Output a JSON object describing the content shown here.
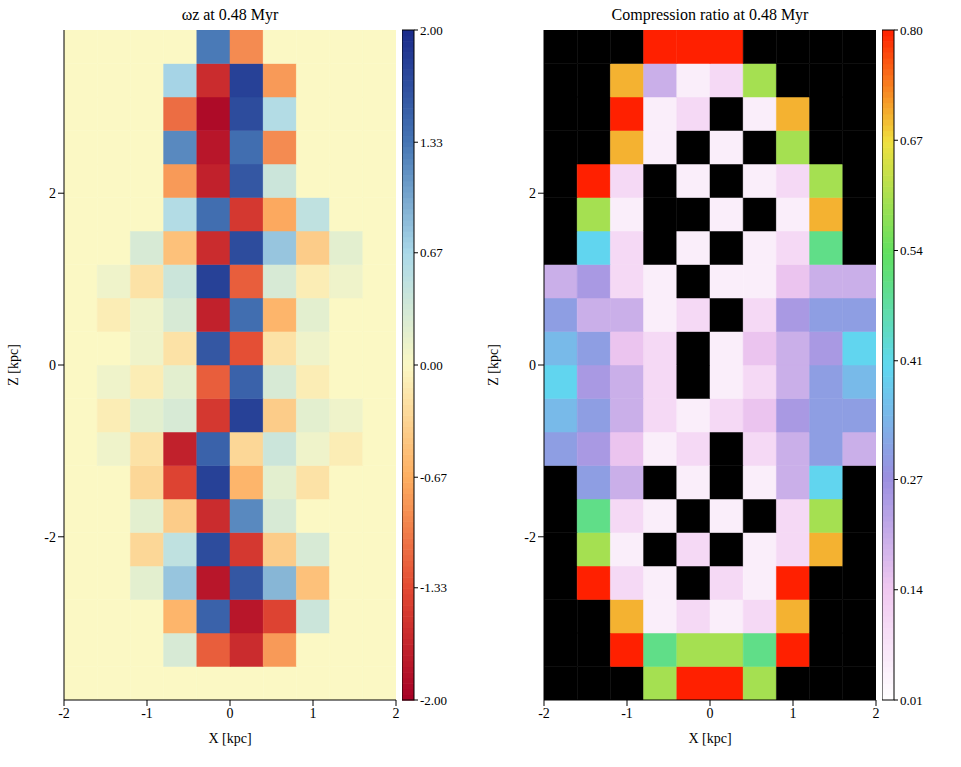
{
  "chart_data": [
    {
      "type": "heatmap",
      "title": "ωz at 0.48 Myr",
      "xlabel": "X [kpc]",
      "ylabel": "Z [kpc]",
      "xlim": [
        -2,
        2
      ],
      "ylim": [
        -3.9,
        3.9
      ],
      "xticks": [
        -2,
        -1,
        0,
        1,
        2
      ],
      "yticks": [
        -2,
        0,
        2
      ],
      "x_edges": [
        -2,
        -1.6,
        -1.2,
        -0.8,
        -0.4,
        0,
        0.4,
        0.8,
        1.2,
        1.6,
        2
      ],
      "z_edges": [
        -3.9,
        -3.51,
        -3.12,
        -2.73,
        -2.34,
        -1.95,
        -1.56,
        -1.17,
        -0.78,
        -0.39,
        0,
        0.39,
        0.78,
        1.17,
        1.56,
        1.95,
        2.34,
        2.73,
        3.12,
        3.51,
        3.9
      ],
      "cells": [
        [
          0,
          0,
          0,
          0,
          0,
          0,
          0,
          0,
          0,
          0
        ],
        [
          0,
          0,
          0,
          0.3,
          -1.2,
          -1.6,
          -0.8,
          0,
          0,
          0
        ],
        [
          0,
          0,
          0,
          -0.6,
          1.5,
          -1.8,
          -1.4,
          0.4,
          0,
          0
        ],
        [
          0,
          0,
          0.2,
          0.8,
          -1.8,
          1.6,
          0.9,
          -0.5,
          0,
          0
        ],
        [
          0,
          0,
          -0.3,
          0.5,
          1.7,
          -1.5,
          -0.4,
          0.3,
          0,
          0
        ],
        [
          0,
          0,
          0.2,
          -0.4,
          -1.6,
          1.2,
          0.3,
          0,
          0,
          0
        ],
        [
          0,
          0,
          -0.3,
          -1.4,
          1.8,
          -0.6,
          0.2,
          -0.2,
          0,
          0
        ],
        [
          0,
          0.1,
          -0.2,
          -1.7,
          1.5,
          -0.3,
          0.4,
          0.1,
          -0.1,
          0
        ],
        [
          0,
          -0.1,
          0.2,
          0.3,
          -1.5,
          1.8,
          -0.4,
          0.2,
          0.1,
          0
        ],
        [
          0,
          0.1,
          -0.1,
          0.2,
          -1.2,
          1.5,
          0.3,
          -0.1,
          0,
          0
        ],
        [
          0,
          0,
          0.1,
          -0.2,
          1.6,
          -1.3,
          -0.2,
          0.1,
          0,
          0
        ],
        [
          0,
          -0.1,
          0.1,
          0.3,
          -1.7,
          1.4,
          -0.6,
          0.2,
          0,
          0
        ],
        [
          0,
          0.1,
          -0.2,
          0.4,
          1.8,
          -1.2,
          0.3,
          -0.1,
          0.1,
          0
        ],
        [
          0,
          0,
          0.3,
          -0.5,
          -1.6,
          1.7,
          0.8,
          -0.4,
          0.2,
          0
        ],
        [
          0,
          0,
          0,
          0.6,
          1.4,
          -1.5,
          -0.7,
          0.5,
          0,
          0
        ],
        [
          0,
          0,
          0,
          -0.8,
          -1.7,
          1.6,
          0.4,
          0,
          0,
          0
        ],
        [
          0,
          0,
          0,
          1.2,
          -1.8,
          1.4,
          -0.9,
          0,
          0,
          0
        ],
        [
          0,
          0,
          0,
          -1.1,
          -1.9,
          1.7,
          0.6,
          0,
          0,
          0
        ],
        [
          0,
          0,
          0,
          0.7,
          -1.6,
          1.8,
          -0.8,
          0,
          0,
          0
        ],
        [
          0,
          0,
          0,
          0,
          1.3,
          -0.9,
          0,
          0,
          0,
          0
        ]
      ],
      "colorbar": {
        "range": [
          -2,
          2
        ],
        "ticks": [
          {
            "value": -2,
            "label": "-2.00"
          },
          -1.33,
          -0.67,
          {
            "value": 0,
            "label": "0.00"
          },
          0.67,
          1.33,
          {
            "value": 2,
            "label": "2.00"
          }
        ]
      }
    },
    {
      "type": "heatmap",
      "title": "Compression ratio at 0.48 Myr",
      "xlabel": "X [kpc]",
      "ylabel": "Z [kpc]",
      "xlim": [
        -2,
        2
      ],
      "ylim": [
        -3.9,
        3.9
      ],
      "xticks": [
        -2,
        -1,
        0,
        1,
        2
      ],
      "yticks": [
        -2,
        0,
        2
      ],
      "x_edges": [
        -2,
        -1.6,
        -1.2,
        -0.8,
        -0.4,
        0,
        0.4,
        0.8,
        1.2,
        1.6,
        2
      ],
      "z_edges": [
        -3.9,
        -3.51,
        -3.12,
        -2.73,
        -2.34,
        -1.95,
        -1.56,
        -1.17,
        -0.78,
        -0.39,
        0,
        0.39,
        0.78,
        1.17,
        1.56,
        1.95,
        2.34,
        2.73,
        3.12,
        3.51,
        3.9
      ],
      "cells": [
        [
          0,
          0,
          0,
          0.6,
          0.8,
          0.8,
          0.6,
          0,
          0,
          0
        ],
        [
          0,
          0,
          0.8,
          0.5,
          0.6,
          0.6,
          0.5,
          0.8,
          0,
          0
        ],
        [
          0,
          0,
          0.7,
          0.05,
          0.1,
          0.05,
          0.1,
          0.7,
          0,
          0
        ],
        [
          0,
          0.8,
          0.1,
          0.05,
          0,
          0.1,
          0.05,
          0.8,
          0,
          0
        ],
        [
          0,
          0.6,
          0.05,
          0,
          0.1,
          0,
          0.05,
          0.1,
          0.7,
          0
        ],
        [
          0,
          0.5,
          0.1,
          0.05,
          0,
          0.05,
          0,
          0.1,
          0.6,
          0
        ],
        [
          0,
          0.3,
          0.2,
          0,
          0.05,
          0,
          0.05,
          0.2,
          0.4,
          0
        ],
        [
          0.3,
          0.25,
          0.15,
          0.05,
          0.1,
          0,
          0.1,
          0.2,
          0.3,
          0.2
        ],
        [
          0.35,
          0.3,
          0.2,
          0.1,
          0.05,
          0.1,
          0.15,
          0.25,
          0.3,
          0.3
        ],
        [
          0.4,
          0.25,
          0.2,
          0.1,
          0,
          0.05,
          0.1,
          0.2,
          0.3,
          0.35
        ],
        [
          0.35,
          0.3,
          0.15,
          0.1,
          0,
          0.05,
          0.15,
          0.2,
          0.25,
          0.4
        ],
        [
          0.3,
          0.2,
          0.2,
          0.05,
          0.1,
          0,
          0.1,
          0.25,
          0.3,
          0.3
        ],
        [
          0.2,
          0.25,
          0.1,
          0.05,
          0,
          0.05,
          0.05,
          0.15,
          0.2,
          0.2
        ],
        [
          0,
          0.4,
          0.1,
          0,
          0.05,
          0,
          0.05,
          0.1,
          0.5,
          0
        ],
        [
          0,
          0.6,
          0.05,
          0,
          0,
          0.05,
          0,
          0.05,
          0.7,
          0
        ],
        [
          0,
          0.8,
          0.1,
          0,
          0.05,
          0,
          0.05,
          0.1,
          0.6,
          0
        ],
        [
          0,
          0,
          0.7,
          0.05,
          0,
          0.05,
          0,
          0.6,
          0,
          0
        ],
        [
          0,
          0,
          0.8,
          0.05,
          0.1,
          0,
          0.05,
          0.7,
          0,
          0
        ],
        [
          0,
          0,
          0.7,
          0.2,
          0.05,
          0.1,
          0.6,
          0,
          0,
          0
        ],
        [
          0,
          0,
          0,
          0.8,
          0.8,
          0.8,
          0,
          0,
          0,
          0
        ]
      ],
      "colorbar": {
        "range": [
          0.01,
          0.8
        ],
        "ticks": [
          0.01,
          0.14,
          0.27,
          0.41,
          0.54,
          0.67,
          {
            "value": 0.8,
            "label": "0.80"
          }
        ]
      }
    }
  ]
}
